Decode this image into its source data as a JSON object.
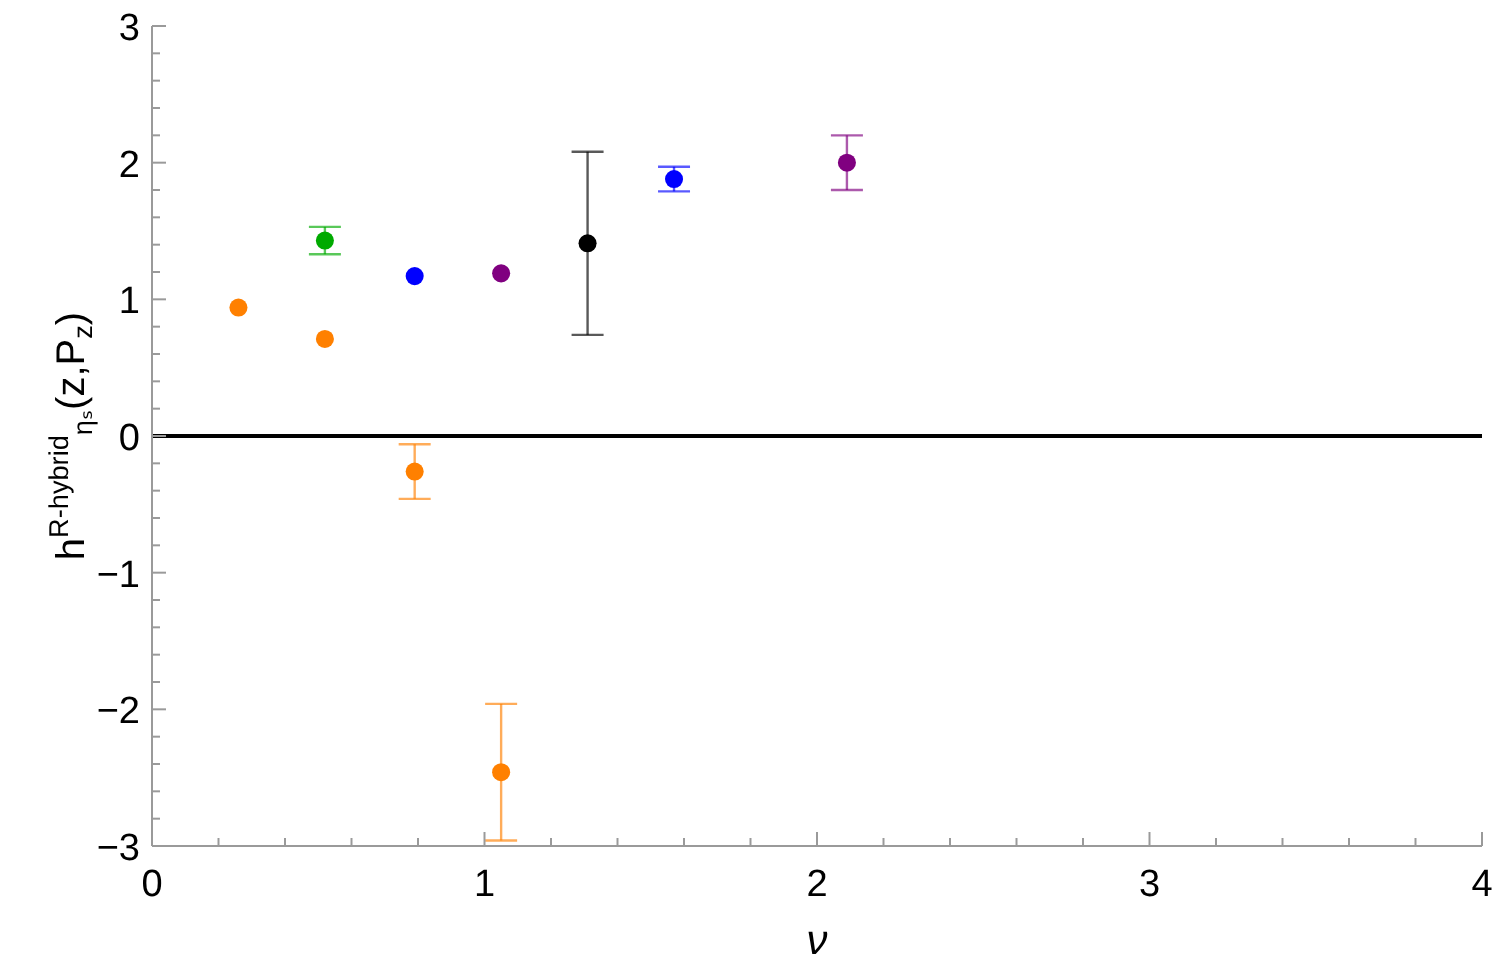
{
  "chart_data": {
    "type": "scatter",
    "xlabel": "ν",
    "ylabel": "h$^{R-hybrid}$$_{ηₛ}$(z,P$_{z}$)",
    "xlim": [
      0,
      4
    ],
    "xticks": [
      0,
      {
        "value": 0.2,
        "label": null
      },
      {
        "value": 0.4,
        "label": null
      },
      {
        "value": 0.6,
        "label": null
      },
      {
        "value": 0.8,
        "label": null
      },
      1,
      {
        "value": 1.2,
        "label": null
      },
      {
        "value": 1.4,
        "label": null
      },
      {
        "value": 1.6,
        "label": null
      },
      {
        "value": 1.8,
        "label": null
      },
      2,
      {
        "value": 2.2,
        "label": null
      },
      {
        "value": 2.4,
        "label": null
      },
      {
        "value": 2.6,
        "label": null
      },
      {
        "value": 2.8,
        "label": null
      },
      3,
      {
        "value": 3.2,
        "label": null
      },
      {
        "value": 3.4,
        "label": null
      },
      {
        "value": 3.6,
        "label": null
      },
      {
        "value": 3.8,
        "label": null
      },
      4
    ],
    "ylim": [
      -3,
      3
    ],
    "yticks": [
      {
        "value": -3,
        "label": "−3"
      },
      {
        "value": -2.8,
        "label": null
      },
      {
        "value": -2.6,
        "label": null
      },
      {
        "value": -2.4,
        "label": null
      },
      {
        "value": -2.2,
        "label": null
      },
      {
        "value": -2,
        "label": "−2"
      },
      {
        "value": -1.8,
        "label": null
      },
      {
        "value": -1.6,
        "label": null
      },
      {
        "value": -1.4,
        "label": null
      },
      {
        "value": -1.2,
        "label": null
      },
      {
        "value": -1,
        "label": "−1"
      },
      {
        "value": -0.8,
        "label": null
      },
      {
        "value": -0.6,
        "label": null
      },
      {
        "value": -0.4,
        "label": null
      },
      {
        "value": -0.2,
        "label": null
      },
      0,
      {
        "value": 0.2,
        "label": null
      },
      {
        "value": 0.4,
        "label": null
      },
      {
        "value": 0.6,
        "label": null
      },
      {
        "value": 0.8,
        "label": null
      },
      1,
      {
        "value": 1.2,
        "label": null
      },
      {
        "value": 1.4,
        "label": null
      },
      {
        "value": 1.6,
        "label": null
      },
      {
        "value": 1.8,
        "label": null
      },
      2,
      {
        "value": 2.2,
        "label": null
      },
      {
        "value": 2.4,
        "label": null
      },
      {
        "value": 2.6,
        "label": null
      },
      {
        "value": 2.8,
        "label": null
      },
      3
    ],
    "marker": "circle",
    "ref_lines": [
      {
        "axis": "y",
        "value": 0,
        "color": "#000000"
      }
    ],
    "series": [
      {
        "color": "#ff8000",
        "x": [
          0.26,
          0.52,
          0.79,
          1.05
        ],
        "values": [
          0.94,
          0.71,
          -0.26,
          -2.46
        ],
        "errors": [
          null,
          null,
          0.2,
          0.5
        ]
      },
      {
        "color": "#00aa00",
        "x": [
          0.52
        ],
        "values": [
          1.43
        ],
        "errors": [
          0.1
        ]
      },
      {
        "color": "#0000ff",
        "x": [
          0.79,
          1.57
        ],
        "values": [
          1.17,
          1.88
        ],
        "errors": [
          null,
          0.09
        ]
      },
      {
        "color": "#800080",
        "x": [
          1.05,
          2.09
        ],
        "values": [
          1.19,
          2.0
        ],
        "errors": [
          null,
          0.2
        ]
      },
      {
        "color": "#000000",
        "x": [
          1.31
        ],
        "values": [
          1.41
        ],
        "errors": [
          0.67
        ]
      }
    ]
  }
}
